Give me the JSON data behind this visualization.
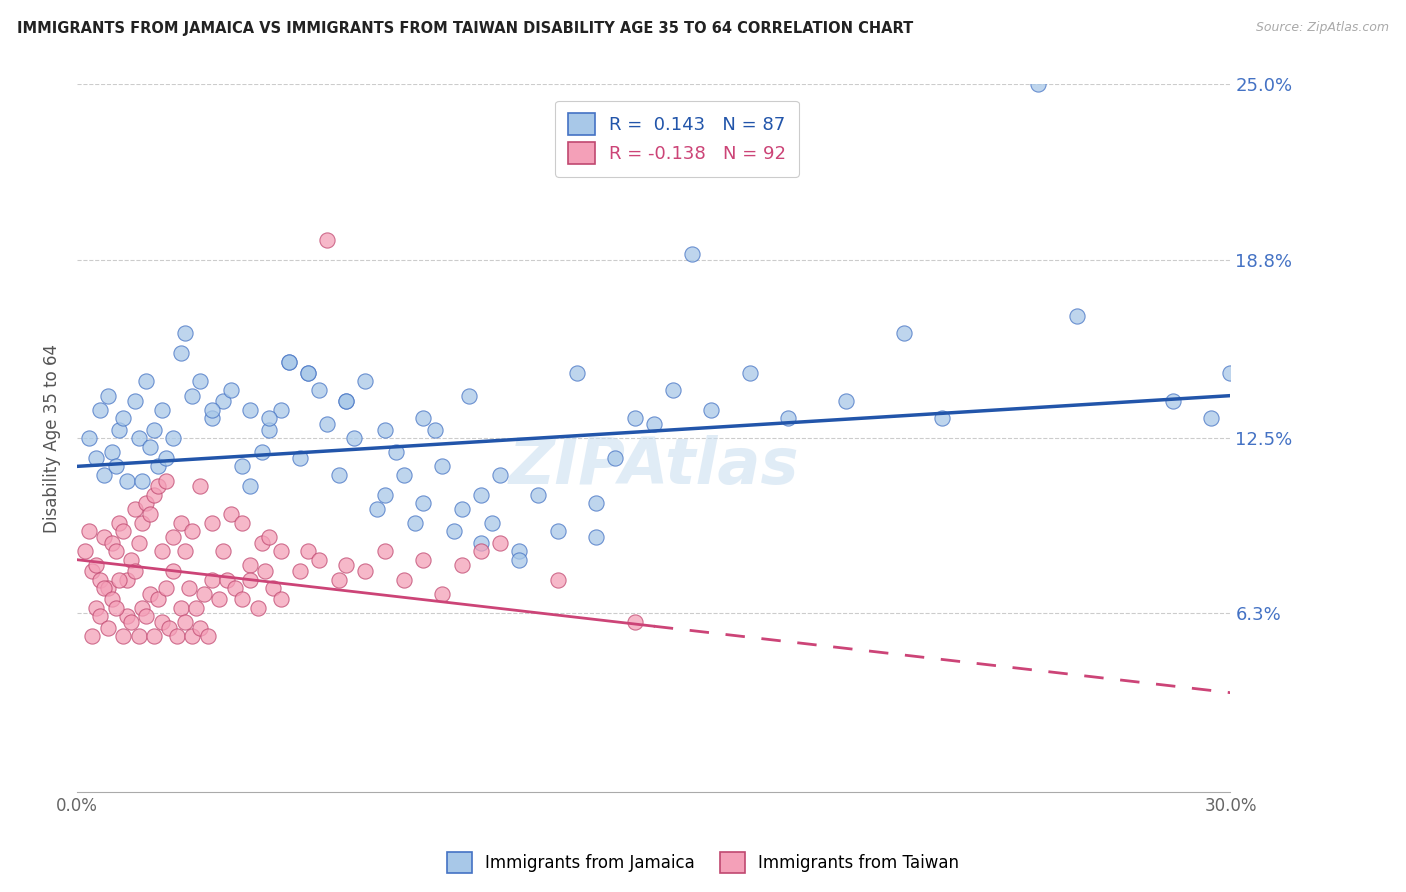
{
  "title": "IMMIGRANTS FROM JAMAICA VS IMMIGRANTS FROM TAIWAN DISABILITY AGE 35 TO 64 CORRELATION CHART",
  "source": "Source: ZipAtlas.com",
  "ylabel": "Disability Age 35 to 64",
  "xmin": 0.0,
  "xmax": 30.0,
  "ymin": 0.0,
  "ymax": 25.0,
  "yticks": [
    6.3,
    12.5,
    18.8,
    25.0
  ],
  "ytick_labels": [
    "6.3%",
    "12.5%",
    "18.8%",
    "25.0%"
  ],
  "xtick_positions": [
    0.0,
    7.5,
    15.0,
    22.5,
    30.0
  ],
  "xtick_labels": [
    "0.0%",
    "",
    "",
    "",
    "30.0%"
  ],
  "jamaica_color": "#a8c8e8",
  "taiwan_color": "#f4a0b8",
  "jamaica_edge_color": "#4472c4",
  "taiwan_edge_color": "#c04870",
  "jamaica_line_color": "#2255aa",
  "taiwan_line_color": "#cc4477",
  "jamaica_R": 0.143,
  "taiwan_R": -0.138,
  "jamaica_N": 87,
  "taiwan_N": 92,
  "jamaica_line_start_y": 11.5,
  "jamaica_line_end_y": 14.0,
  "taiwan_line_start_y": 8.2,
  "taiwan_line_end_x_solid": 15.0,
  "taiwan_line_end_y_solid": 6.6,
  "taiwan_line_end_y": 3.5,
  "jamaica_scatter_x": [
    0.3,
    0.5,
    0.6,
    0.7,
    0.8,
    0.9,
    1.0,
    1.1,
    1.2,
    1.3,
    1.5,
    1.6,
    1.7,
    1.8,
    1.9,
    2.0,
    2.1,
    2.2,
    2.3,
    2.5,
    2.7,
    2.8,
    3.0,
    3.2,
    3.5,
    3.8,
    4.0,
    4.3,
    4.5,
    4.8,
    5.0,
    5.3,
    5.5,
    5.8,
    6.0,
    6.3,
    6.5,
    6.8,
    7.0,
    7.2,
    7.5,
    7.8,
    8.0,
    8.3,
    8.5,
    8.8,
    9.0,
    9.3,
    9.5,
    9.8,
    10.0,
    10.2,
    10.5,
    10.8,
    11.0,
    11.5,
    12.0,
    12.5,
    13.0,
    13.5,
    14.0,
    14.5,
    15.0,
    15.5,
    16.5,
    17.5,
    18.5,
    20.0,
    21.5,
    22.5,
    25.0,
    26.0,
    28.5,
    29.5,
    30.0,
    5.0,
    5.5,
    7.0,
    9.0,
    11.5,
    3.5,
    4.5,
    6.0,
    8.0,
    10.5,
    13.5,
    16.0
  ],
  "jamaica_scatter_y": [
    12.5,
    11.8,
    13.5,
    11.2,
    14.0,
    12.0,
    11.5,
    12.8,
    13.2,
    11.0,
    13.8,
    12.5,
    11.0,
    14.5,
    12.2,
    12.8,
    11.5,
    13.5,
    11.8,
    12.5,
    15.5,
    16.2,
    14.0,
    14.5,
    13.2,
    13.8,
    14.2,
    11.5,
    13.5,
    12.0,
    12.8,
    13.5,
    15.2,
    11.8,
    14.8,
    14.2,
    13.0,
    11.2,
    13.8,
    12.5,
    14.5,
    10.0,
    12.8,
    12.0,
    11.2,
    9.5,
    13.2,
    12.8,
    11.5,
    9.2,
    10.0,
    14.0,
    10.5,
    9.5,
    11.2,
    8.5,
    10.5,
    9.2,
    14.8,
    9.0,
    11.8,
    13.2,
    13.0,
    14.2,
    13.5,
    14.8,
    13.2,
    13.8,
    16.2,
    13.2,
    25.0,
    16.8,
    13.8,
    13.2,
    14.8,
    13.2,
    15.2,
    13.8,
    10.2,
    8.2,
    13.5,
    10.8,
    14.8,
    10.5,
    8.8,
    10.2,
    19.0
  ],
  "taiwan_scatter_x": [
    0.2,
    0.3,
    0.4,
    0.5,
    0.6,
    0.7,
    0.8,
    0.9,
    1.0,
    1.1,
    1.2,
    1.3,
    1.4,
    1.5,
    1.6,
    1.7,
    1.8,
    1.9,
    2.0,
    2.1,
    2.2,
    2.3,
    2.5,
    2.7,
    2.8,
    3.0,
    3.2,
    3.5,
    3.8,
    4.0,
    4.3,
    4.5,
    4.8,
    5.0,
    5.3,
    5.8,
    6.0,
    6.3,
    6.8,
    7.0,
    7.5,
    8.0,
    8.5,
    9.0,
    9.5,
    10.0,
    10.5,
    11.0,
    12.5,
    14.5,
    0.5,
    0.7,
    0.9,
    1.1,
    1.3,
    1.5,
    1.7,
    1.9,
    2.1,
    2.3,
    2.5,
    2.7,
    2.9,
    3.1,
    3.3,
    3.5,
    3.7,
    3.9,
    4.1,
    4.3,
    4.5,
    4.7,
    4.9,
    5.1,
    5.3,
    0.4,
    0.6,
    0.8,
    1.0,
    1.2,
    1.4,
    1.6,
    1.8,
    2.0,
    2.2,
    2.4,
    2.6,
    2.8,
    3.0,
    3.2,
    3.4,
    6.5
  ],
  "taiwan_scatter_y": [
    8.5,
    9.2,
    7.8,
    8.0,
    7.5,
    9.0,
    7.2,
    8.8,
    8.5,
    9.5,
    9.2,
    7.5,
    8.2,
    10.0,
    8.8,
    9.5,
    10.2,
    9.8,
    10.5,
    10.8,
    8.5,
    11.0,
    9.0,
    9.5,
    8.5,
    9.2,
    10.8,
    9.5,
    8.5,
    9.8,
    9.5,
    8.0,
    8.8,
    9.0,
    8.5,
    7.8,
    8.5,
    8.2,
    7.5,
    8.0,
    7.8,
    8.5,
    7.5,
    8.2,
    7.0,
    8.0,
    8.5,
    8.8,
    7.5,
    6.0,
    6.5,
    7.2,
    6.8,
    7.5,
    6.2,
    7.8,
    6.5,
    7.0,
    6.8,
    7.2,
    7.8,
    6.5,
    7.2,
    6.5,
    7.0,
    7.5,
    6.8,
    7.5,
    7.2,
    6.8,
    7.5,
    6.5,
    7.8,
    7.2,
    6.8,
    5.5,
    6.2,
    5.8,
    6.5,
    5.5,
    6.0,
    5.5,
    6.2,
    5.5,
    6.0,
    5.8,
    5.5,
    6.0,
    5.5,
    5.8,
    5.5,
    19.5
  ]
}
